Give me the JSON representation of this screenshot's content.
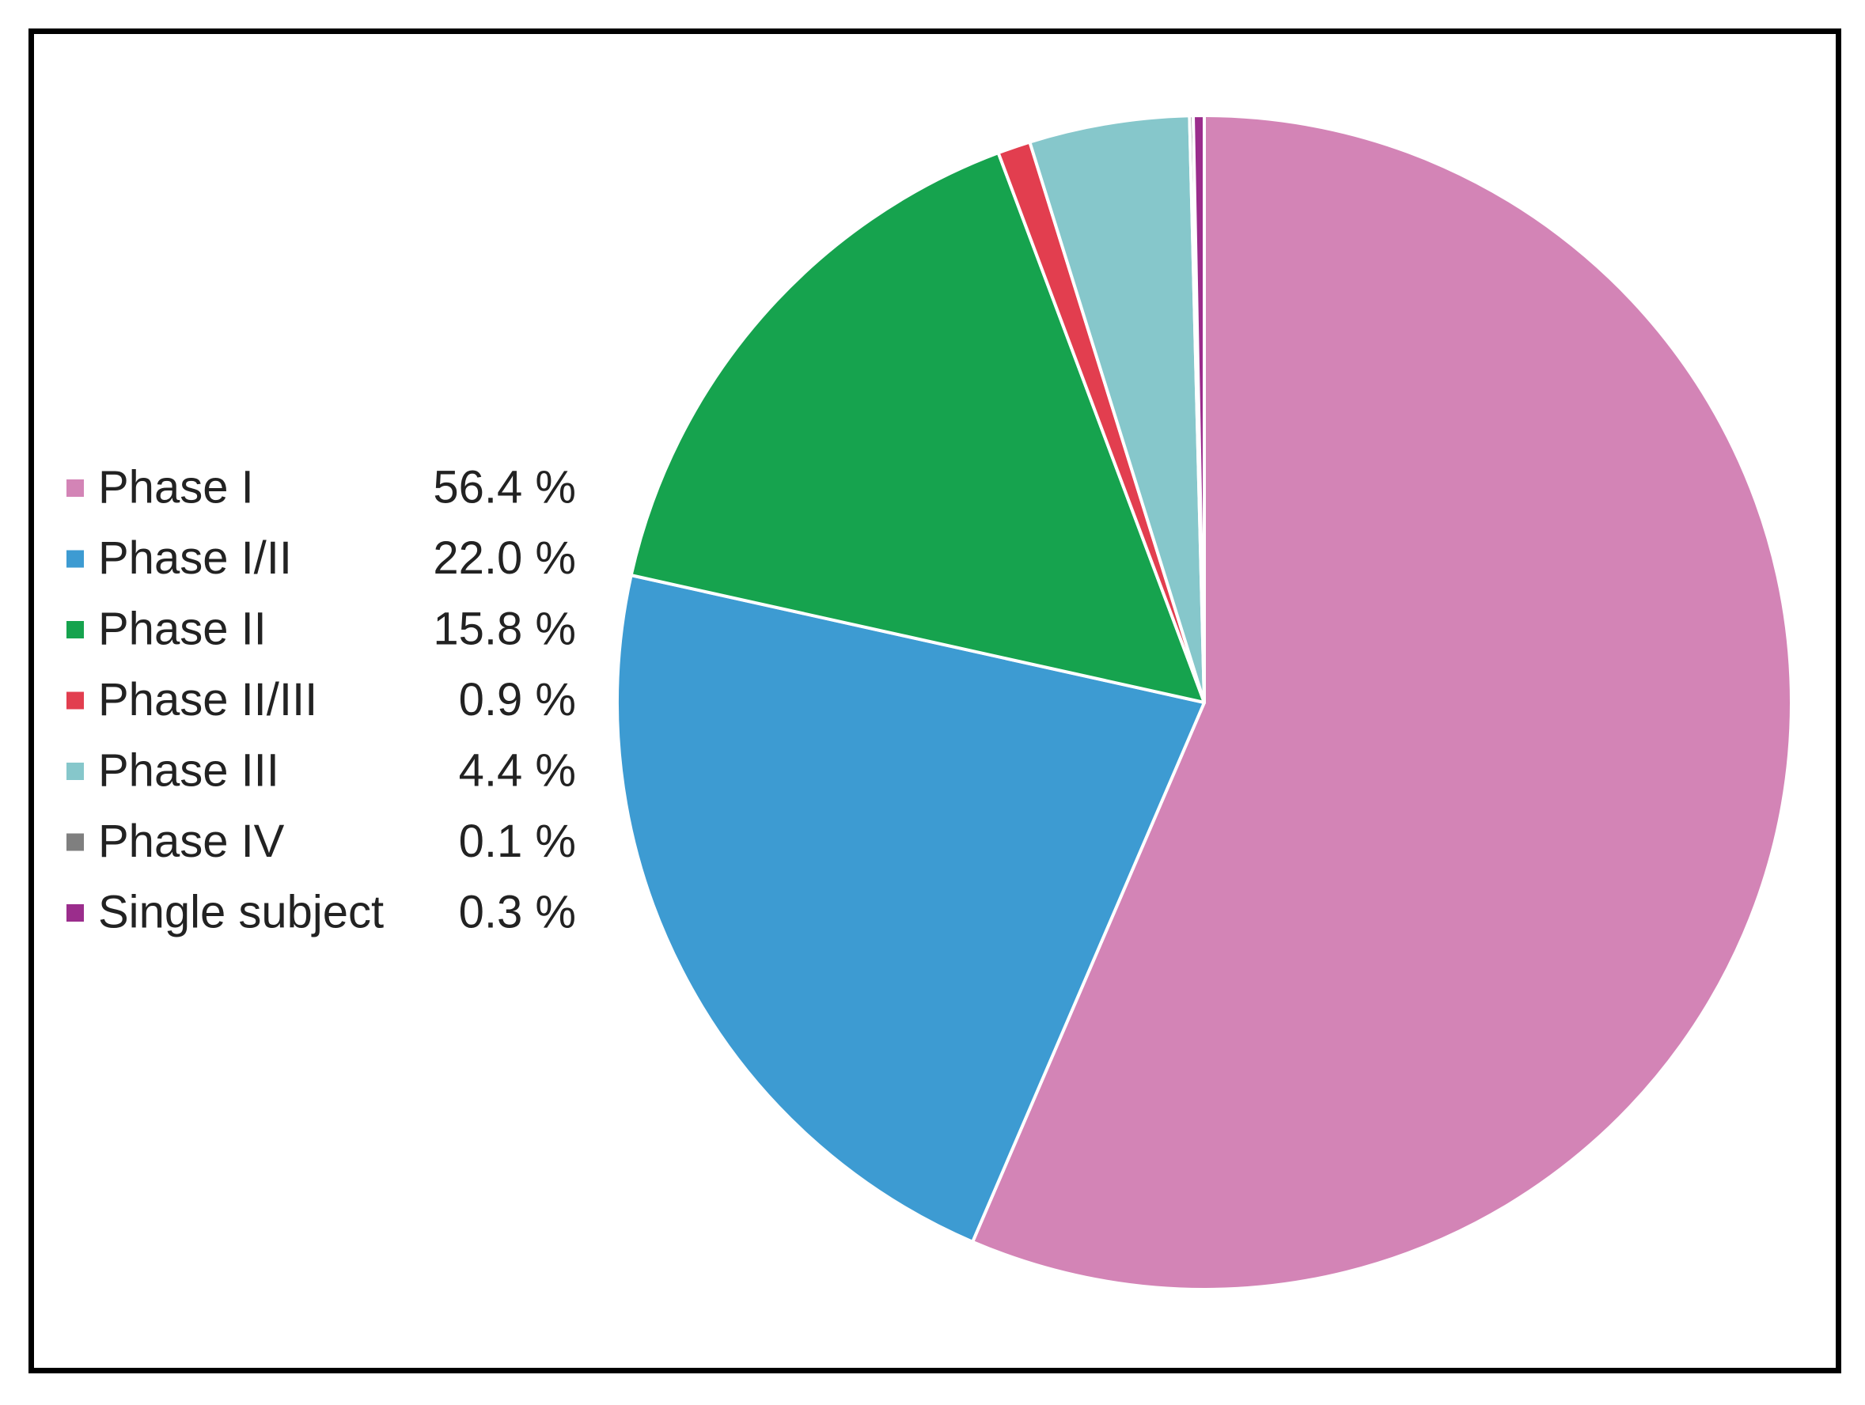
{
  "chart_data": {
    "type": "pie",
    "start_angle_deg": 0,
    "direction": "clockwise",
    "legend_position": "left",
    "slices": [
      {
        "label": "Phase I",
        "value_text": "56.4 %",
        "value": 56.4,
        "color": "#d384b6"
      },
      {
        "label": "Phase I/II",
        "value_text": "22.0 %",
        "value": 22.0,
        "color": "#3d9bd2"
      },
      {
        "label": "Phase II",
        "value_text": "15.8 %",
        "value": 15.8,
        "color": "#16a34e"
      },
      {
        "label": "Phase II/III",
        "value_text": "0.9 %",
        "value": 0.9,
        "color": "#e23e4f"
      },
      {
        "label": "Phase III",
        "value_text": "4.4 %",
        "value": 4.4,
        "color": "#86c7cb"
      },
      {
        "label": "Phase IV",
        "value_text": "0.1 %",
        "value": 0.1,
        "color": "#7f7f7f"
      },
      {
        "label": "Single subject",
        "value_text": "0.3 %",
        "value": 0.3,
        "color": "#9b2d8c"
      }
    ]
  }
}
